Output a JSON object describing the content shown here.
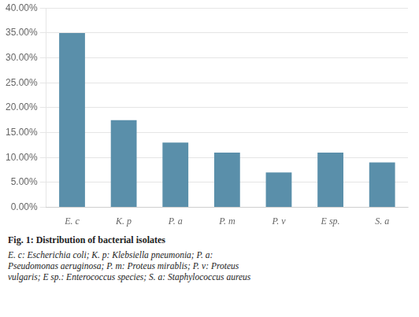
{
  "chart_data": {
    "type": "bar",
    "title": "Fig. 1: Distribution of bacterial isolates",
    "subtitle": "E. c: Escherichia coli; K. p: Klebsiella pneumonia; P. a:\nPseudomonas aeruginosa; P. m: Proteus mirablis; P. v: Proteus\nvulgaris; E sp.: Enterococcus species; S. a: Staphylococcus aureus",
    "categories": [
      "E. c",
      "K. p",
      "P. a",
      "P. m",
      "P. v",
      "E sp.",
      "S. a"
    ],
    "values": [
      0.35,
      0.175,
      0.13,
      0.11,
      0.07,
      0.11,
      0.09
    ],
    "color": "#5a8faa",
    "ylim": [
      0.0,
      0.4
    ],
    "yticks": [
      {
        "value": 0.0,
        "label": "0.00%"
      },
      {
        "value": 0.05,
        "label": "5.00%"
      },
      {
        "value": 0.1,
        "label": "10.00%"
      },
      {
        "value": 0.15,
        "label": "15.00%"
      },
      {
        "value": 0.2,
        "label": "20.00%"
      },
      {
        "value": 0.25,
        "label": "25.00%"
      },
      {
        "value": 0.3,
        "label": "30.00%"
      },
      {
        "value": 0.35,
        "label": "35.00%"
      },
      {
        "value": 0.4,
        "label": "40.00%"
      }
    ],
    "grid": true
  }
}
